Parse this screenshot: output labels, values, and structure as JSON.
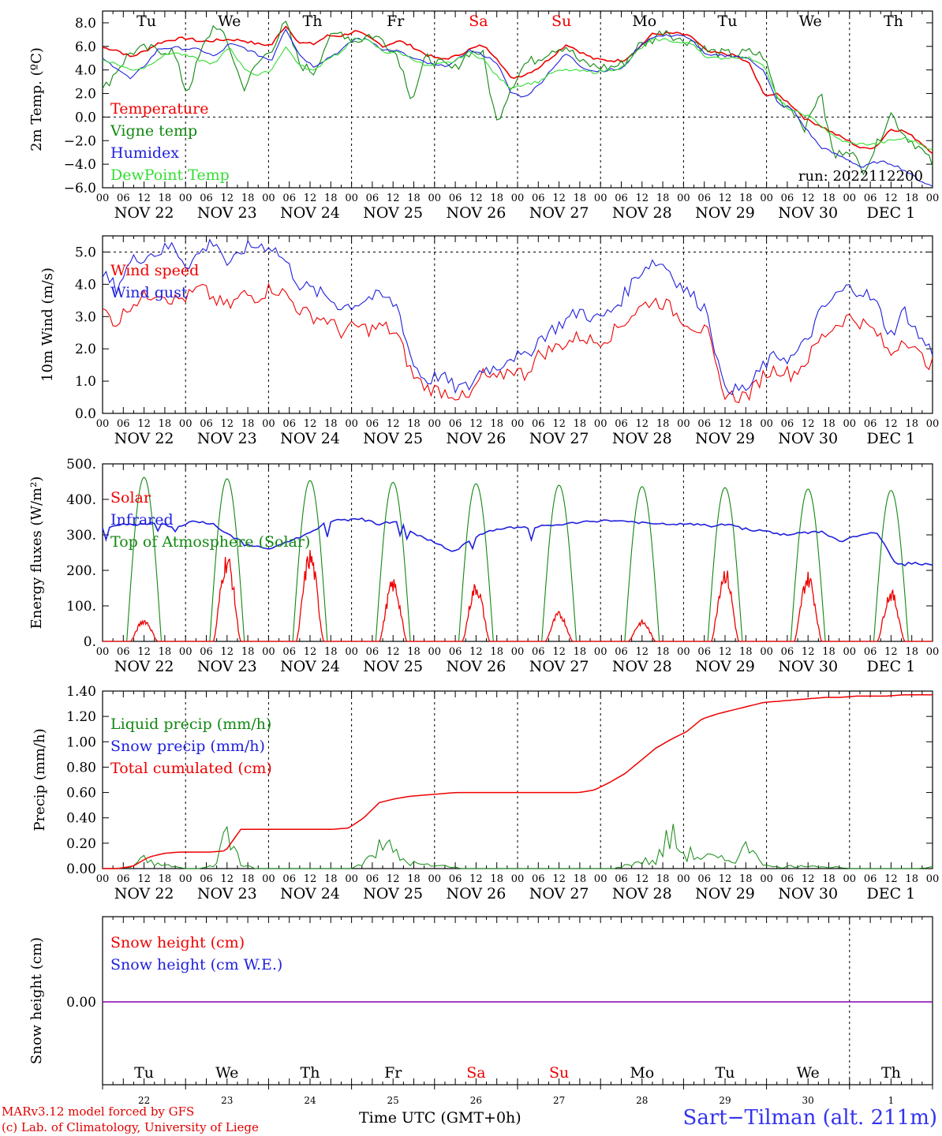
{
  "chart_data": [
    {
      "id": "temp",
      "type": "line",
      "ylabel": "2m Temp. (ºC)",
      "ylim": [
        -6.0,
        9.0
      ],
      "yticks": [
        8.0,
        6.0,
        4.0,
        2.0,
        0.0,
        -2.0,
        -4.0,
        -6.0
      ],
      "ytick_labels": [
        "8.0",
        "6.0",
        "4.0",
        "2.0",
        "0.0",
        "−2.0",
        "−4.0",
        "−6.0"
      ],
      "hline": 0.0,
      "day_labels": [
        "Tu",
        "We",
        "Th",
        "Fr",
        "Sa",
        "Su",
        "Mo",
        "Tu",
        "We",
        "Th"
      ],
      "run_label": "run: 2022112200",
      "series": [
        {
          "name": "Temperature",
          "color": "#ee0000",
          "values": [
            5.9,
            5.7,
            5.1,
            5.6,
            6.3,
            6.6,
            6.7,
            6.4,
            6.5,
            6.6,
            6.5,
            6.2,
            6.1,
            7.8,
            6.3,
            6.2,
            6.9,
            6.9,
            7.3,
            6.7,
            6.0,
            6.5,
            6.0,
            5.3,
            4.9,
            5.1,
            5.7,
            6.1,
            5.1,
            3.3,
            3.6,
            4.2,
            5.2,
            6.2,
            5.5,
            4.9,
            4.8,
            4.8,
            5.7,
            7.0,
            7.1,
            7.1,
            6.7,
            5.5,
            5.4,
            5.2,
            4.5,
            1.9,
            1.9,
            1.0,
            -0.2,
            -0.7,
            -1.4,
            -2.0,
            -2.7,
            -2.5,
            -1.0,
            -1.2,
            -2.0,
            -3.0
          ]
        },
        {
          "name": "Vigne temp",
          "color": "#118811",
          "values": [
            2.2,
            4.0,
            5.5,
            5.8,
            5.7,
            5.6,
            2.0,
            5.5,
            8.0,
            6.0,
            2.4,
            4.5,
            5.8,
            8.0,
            4.5,
            3.8,
            6.5,
            7.2,
            6.4,
            7.0,
            6.5,
            5.2,
            1.5,
            5.1,
            4.5,
            4.0,
            5.5,
            5.5,
            -0.5,
            2.5,
            4.5,
            5.0,
            5.8,
            6.0,
            4.6,
            4.3,
            4.2,
            4.5,
            6.0,
            6.5,
            7.5,
            6.5,
            6.5,
            5.6,
            5.4,
            5.3,
            5.5,
            5.2,
            1.5,
            0.8,
            -1.0,
            2.3,
            -3.5,
            -2.5,
            -4.6,
            -2.5,
            0.4,
            -1.5,
            -2.5,
            -4.0
          ]
        },
        {
          "name": "Humidex",
          "color": "#2020dd",
          "values": [
            4.9,
            4.2,
            3.2,
            4.4,
            5.8,
            5.9,
            5.8,
            5.7,
            5.1,
            6.2,
            5.9,
            5.3,
            4.8,
            7.6,
            5.3,
            4.3,
            5.0,
            5.7,
            6.7,
            6.5,
            5.7,
            5.6,
            5.0,
            4.6,
            4.3,
            4.6,
            5.7,
            5.3,
            4.7,
            2.1,
            1.7,
            2.7,
            4.2,
            5.4,
            4.3,
            3.9,
            4.0,
            4.1,
            5.8,
            6.8,
            6.9,
            7.0,
            6.4,
            5.2,
            5.2,
            5.2,
            4.9,
            4.0,
            1.1,
            0.7,
            -1.0,
            -2.5,
            -3.1,
            -3.6,
            -4.3,
            -3.8,
            -3.9,
            -4.5,
            -5.3,
            -5.9
          ]
        },
        {
          "name": "DewPoint Temp",
          "color": "#33dd33",
          "values": [
            4.9,
            4.5,
            4.0,
            4.2,
            5.0,
            5.5,
            5.2,
            4.8,
            4.5,
            6.0,
            4.2,
            3.5,
            4.0,
            6.0,
            4.4,
            3.9,
            5.0,
            5.5,
            6.8,
            6.4,
            5.5,
            5.5,
            5.0,
            4.3,
            4.5,
            4.7,
            5.5,
            5.0,
            3.5,
            2.5,
            2.8,
            3.0,
            3.8,
            4.0,
            3.9,
            3.8,
            4.0,
            4.2,
            5.6,
            6.5,
            6.6,
            6.3,
            6.2,
            5.0,
            5.0,
            5.1,
            5.0,
            4.5,
            1.5,
            0.5,
            0.2,
            -0.6,
            -1.7,
            -2.2,
            -2.3,
            -2.3,
            -2.0,
            -1.8,
            -2.2,
            -2.8
          ]
        }
      ]
    },
    {
      "id": "wind",
      "type": "line",
      "ylabel": "10m Wind (m/s)",
      "ylim": [
        0.0,
        5.5
      ],
      "yticks": [
        5.0,
        4.0,
        3.0,
        2.0,
        1.0,
        0.0
      ],
      "ytick_labels": [
        "5.0",
        "4.0",
        "3.0",
        "2.0",
        "1.0",
        "0.0"
      ],
      "hline": 5.0,
      "series": [
        {
          "name": "Wind speed",
          "color": "#ee0000",
          "values": [
            3.2,
            2.8,
            3.4,
            3.6,
            3.8,
            3.5,
            3.6,
            3.9,
            3.5,
            3.3,
            3.7,
            3.6,
            3.9,
            3.7,
            3.2,
            3.0,
            2.9,
            2.5,
            2.7,
            2.6,
            2.7,
            2.4,
            1.2,
            0.8,
            0.7,
            0.6,
            0.4,
            1.2,
            1.0,
            1.4,
            1.2,
            1.8,
            2.0,
            2.2,
            2.4,
            2.2,
            2.4,
            2.8,
            3.2,
            3.5,
            3.4,
            3.0,
            2.7,
            2.5,
            0.7,
            0.5,
            0.6,
            1.2,
            1.4,
            1.2,
            1.6,
            2.3,
            2.7,
            3.0,
            2.8,
            2.5,
            1.8,
            2.4,
            1.8,
            1.5
          ]
        },
        {
          "name": "Wind gust",
          "color": "#2020dd",
          "values": [
            4.3,
            3.9,
            4.7,
            4.9,
            5.0,
            5.2,
            4.6,
            5.0,
            5.4,
            4.5,
            5.1,
            5.2,
            5.2,
            4.7,
            4.0,
            3.8,
            3.6,
            3.3,
            3.4,
            3.6,
            3.6,
            3.3,
            1.6,
            1.0,
            1.2,
            0.8,
            0.8,
            1.4,
            1.4,
            1.8,
            1.7,
            2.3,
            2.6,
            2.9,
            3.2,
            2.9,
            3.1,
            3.6,
            4.3,
            4.7,
            4.6,
            4.0,
            3.6,
            3.2,
            1.0,
            0.7,
            0.8,
            1.5,
            1.8,
            1.7,
            2.2,
            3.1,
            3.6,
            3.9,
            3.8,
            3.4,
            2.4,
            3.2,
            2.4,
            1.9
          ]
        }
      ]
    },
    {
      "id": "energy",
      "type": "line",
      "ylabel": "Energy fluxes (W/m²)",
      "ylim": [
        0,
        500
      ],
      "yticks": [
        500,
        400,
        300,
        200,
        100,
        0
      ],
      "ytick_labels": [
        "500.",
        "400.",
        "300.",
        "200.",
        "100.",
        "0."
      ],
      "solar_daily_peak": [
        65,
        255,
        265,
        180,
        170,
        85,
        60,
        215,
        200,
        150
      ],
      "toa_daily_peak": [
        462,
        458,
        453,
        448,
        444,
        440,
        436,
        433,
        429,
        425
      ],
      "infrared": [
        320,
        330,
        330,
        335,
        320,
        340,
        330,
        295,
        270,
        260,
        280,
        300,
        330,
        345,
        345,
        330,
        340,
        300,
        280,
        250,
        290,
        310,
        320,
        320,
        325,
        330,
        335,
        340,
        340,
        335,
        330,
        330,
        330,
        325,
        330,
        315,
        310,
        300,
        305,
        310,
        280,
        300,
        305,
        220,
        220,
        215
      ],
      "series": [
        {
          "name": "Solar",
          "color": "#ee0000"
        },
        {
          "name": "Infrared",
          "color": "#2020dd"
        },
        {
          "name": "Top of Atmosphere (Solar)",
          "color": "#118811"
        }
      ]
    },
    {
      "id": "precip",
      "type": "line",
      "ylabel": "Precip (mm/h)",
      "ylim": [
        0.0,
        1.4
      ],
      "yticks": [
        1.4,
        1.2,
        1.0,
        0.8,
        0.6,
        0.4,
        0.2,
        0.0
      ],
      "ytick_labels": [
        "1.40",
        "1.20",
        "1.00",
        "0.80",
        "0.60",
        "0.40",
        "0.20",
        "0.00"
      ],
      "liquid": [
        0,
        0,
        0.01,
        0.07,
        0.03,
        0.02,
        0,
        0,
        0.02,
        0.28,
        0.05,
        0,
        0,
        0,
        0,
        0,
        0,
        0,
        0,
        0.05,
        0.25,
        0.12,
        0.05,
        0.03,
        0.02,
        0.02,
        0,
        0,
        0,
        0,
        0,
        0,
        0,
        0,
        0,
        0,
        0,
        0,
        0.03,
        0.06,
        0.05,
        0.26,
        0.12,
        0.1,
        0.08,
        0.06,
        0.1,
        0.2,
        0.02,
        0.01,
        0.02,
        0.03,
        0.01,
        0.01,
        0,
        0,
        0,
        0,
        0,
        0,
        0.01
      ],
      "cumulated": [
        0,
        0,
        0.02,
        0.09,
        0.12,
        0.13,
        0.13,
        0.13,
        0.14,
        0.31,
        0.31,
        0.31,
        0.31,
        0.31,
        0.31,
        0.31,
        0.32,
        0.4,
        0.52,
        0.55,
        0.57,
        0.58,
        0.59,
        0.6,
        0.6,
        0.6,
        0.6,
        0.6,
        0.6,
        0.6,
        0.6,
        0.6,
        0.62,
        0.68,
        0.75,
        0.85,
        0.95,
        1.02,
        1.08,
        1.18,
        1.22,
        1.25,
        1.28,
        1.31,
        1.32,
        1.33,
        1.34,
        1.35,
        1.35,
        1.36,
        1.36,
        1.36,
        1.37,
        1.37,
        1.37
      ],
      "series": [
        {
          "name": "Liquid precip (mm/h)",
          "color": "#118811"
        },
        {
          "name": "Snow precip (mm/h)",
          "color": "#2020dd"
        },
        {
          "name": "Total cumulated (cm)",
          "color": "#ee0000"
        }
      ]
    },
    {
      "id": "snow",
      "type": "line",
      "ylabel": "Snow height (cm)",
      "ytick_labels": [
        "0.00"
      ],
      "value": 0.0,
      "day_labels": [
        "Tu",
        "We",
        "Th",
        "Fr",
        "Sa",
        "Su",
        "Mo",
        "Tu",
        "We",
        "Th"
      ],
      "day_numbers": [
        "22",
        "23",
        "24",
        "25",
        "26",
        "27",
        "28",
        "29",
        "30",
        "1"
      ],
      "series": [
        {
          "name": "Snow height (cm)",
          "color": "#ee0000"
        },
        {
          "name": "Snow height (cm W.E.)",
          "color": "#2020dd"
        }
      ]
    }
  ],
  "x_axis": {
    "hour_labels": [
      "00",
      "06",
      "12",
      "18"
    ],
    "last_hour_label": "00",
    "date_labels": [
      "NOV 22",
      "NOV 23",
      "NOV 24",
      "NOV 25",
      "NOV 26",
      "NOV 27",
      "NOV 28",
      "NOV 29",
      "NOV 30",
      "DEC  1"
    ],
    "weekend_days": [
      4,
      5
    ],
    "weekend_color": "#ee0000"
  },
  "footer": {
    "credit_line1": "MARv3.12 model forced by GFS",
    "credit_line2": "(c) Lab. of Climatology, University of Liege",
    "x_title": "Time UTC (GMT+0h)",
    "station": "Sart−Tilman (alt. 211m)"
  }
}
